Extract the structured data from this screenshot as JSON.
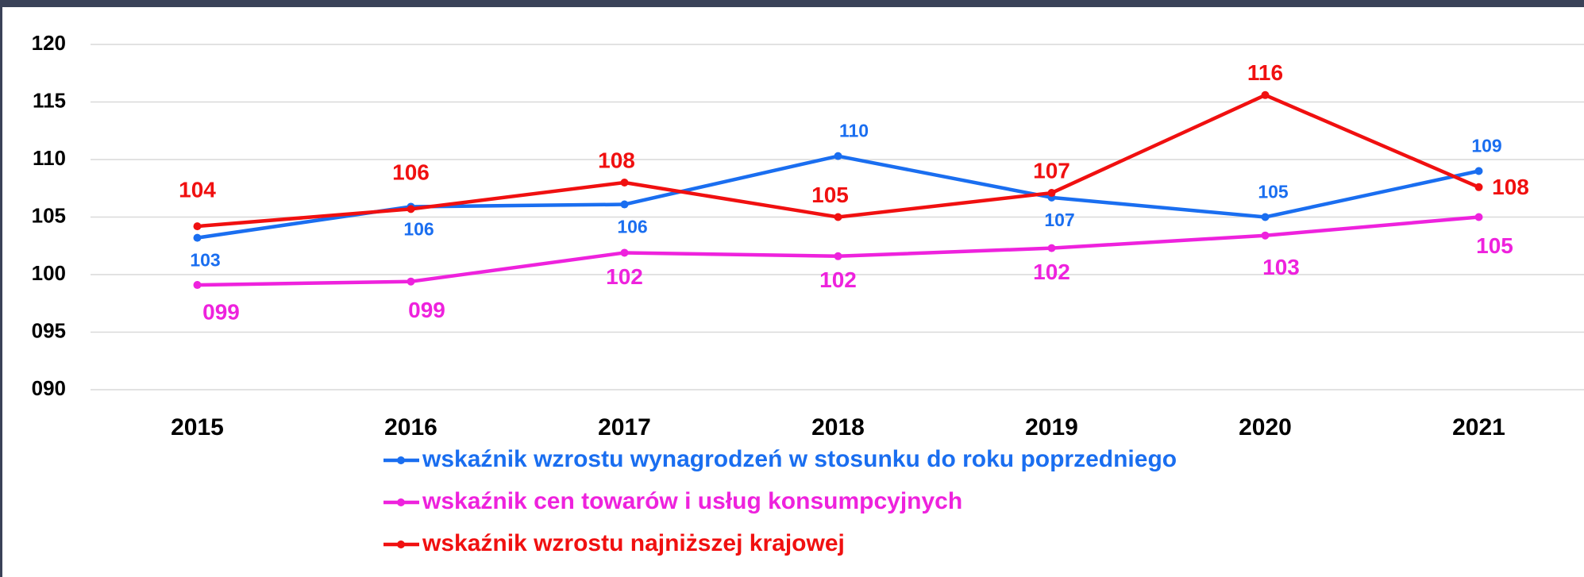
{
  "chart_data": {
    "type": "line",
    "categories": [
      "2015",
      "2016",
      "2017",
      "2018",
      "2019",
      "2020",
      "2021"
    ],
    "series": [
      {
        "name": "wskaźnik wzrostu wynagrodzeń w stosunku do roku poprzedniego",
        "color": "#1a6ef0",
        "values": [
          103.2,
          105.9,
          106.1,
          110.3,
          106.7,
          105.0,
          109.0
        ],
        "value_labels": [
          "103",
          "106",
          "106",
          "110",
          "107",
          "105",
          "109"
        ]
      },
      {
        "name": "wskaźnik cen towarów i usług konsumpcyjnych",
        "color": "#ee22dd",
        "values": [
          99.1,
          99.4,
          101.9,
          101.6,
          102.3,
          103.4,
          105.0
        ],
        "value_labels": [
          "099",
          "099",
          "102",
          "102",
          "102",
          "103",
          "105"
        ]
      },
      {
        "name": "wskaźnik wzrostu najniższej krajowej",
        "color": "#f01010",
        "values": [
          104.2,
          105.7,
          108.0,
          105.0,
          107.1,
          115.6,
          107.6
        ],
        "value_labels": [
          "104",
          "106",
          "108",
          "105",
          "107",
          "116",
          "108"
        ]
      }
    ],
    "ylim": [
      90,
      120
    ],
    "yticks": [
      {
        "value": 90,
        "label": "090"
      },
      {
        "value": 95,
        "label": "095"
      },
      100,
      105,
      110,
      115,
      120
    ],
    "grid": true
  }
}
